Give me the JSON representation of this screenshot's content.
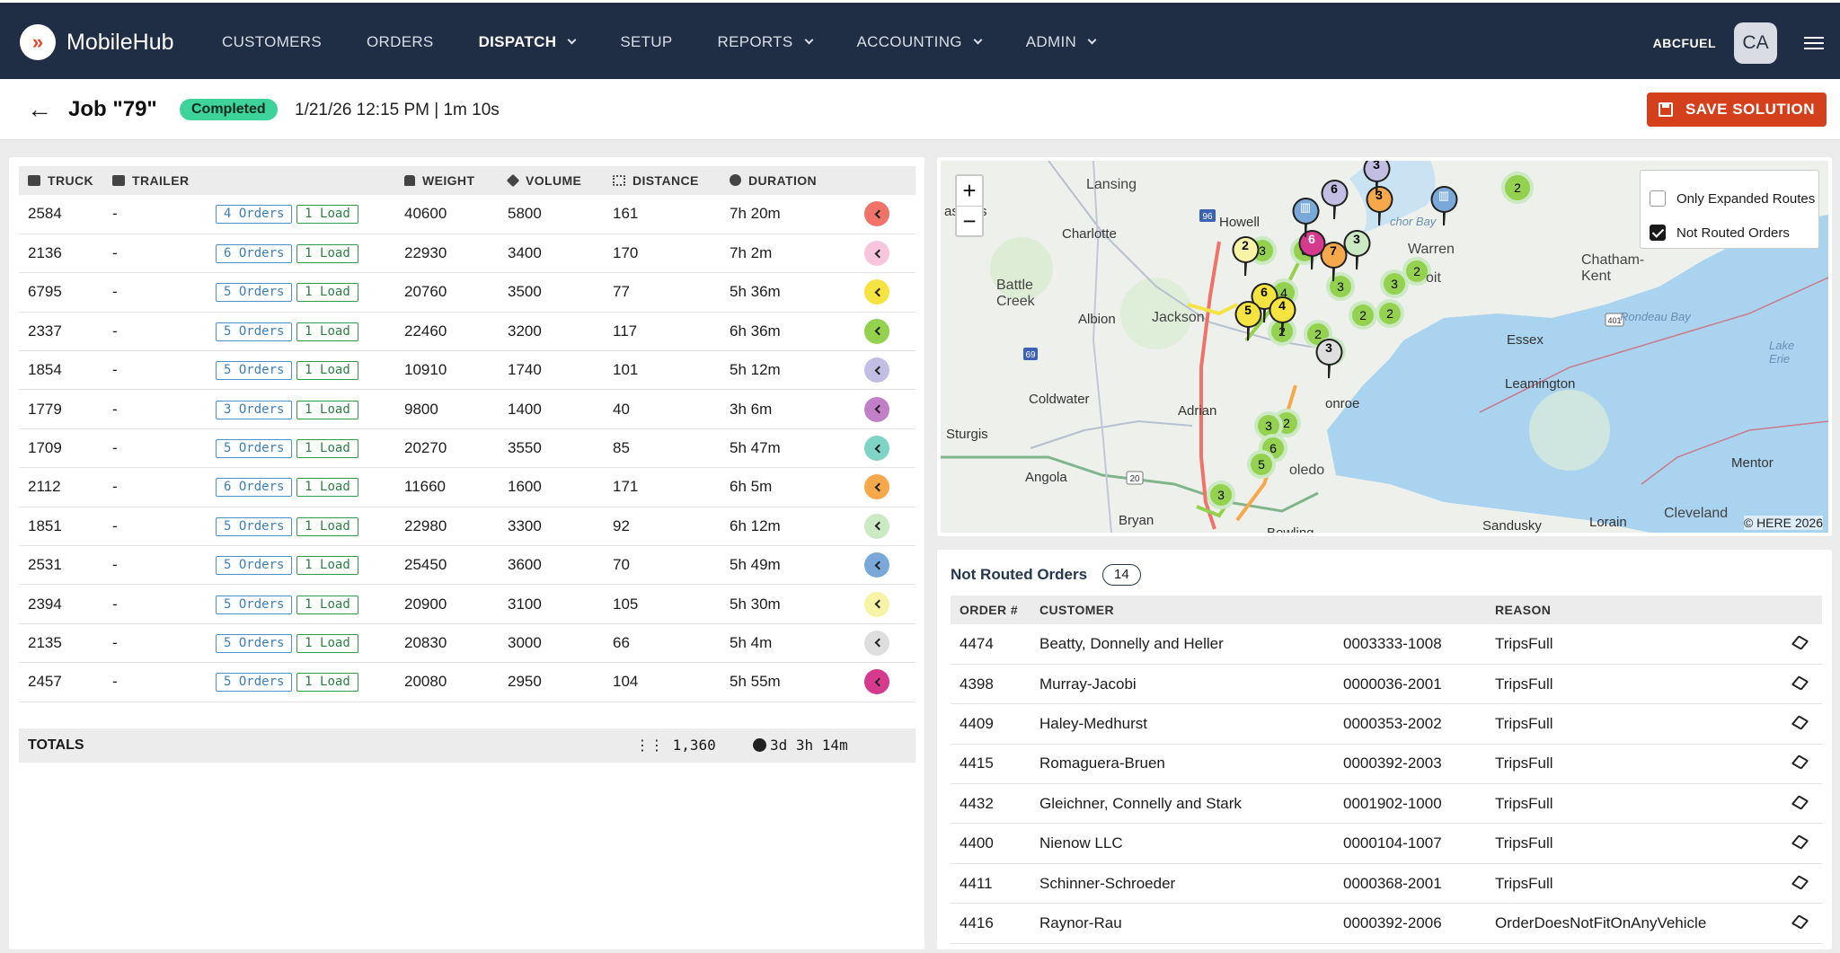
{
  "app": {
    "name": "MobileHub"
  },
  "nav": [
    {
      "label": "CUSTOMERS",
      "dropdown": false,
      "active": false
    },
    {
      "label": "ORDERS",
      "dropdown": false,
      "active": false
    },
    {
      "label": "DISPATCH",
      "dropdown": true,
      "active": true
    },
    {
      "label": "SETUP",
      "dropdown": false,
      "active": false
    },
    {
      "label": "REPORTS",
      "dropdown": true,
      "active": false
    },
    {
      "label": "ACCOUNTING",
      "dropdown": true,
      "active": false
    },
    {
      "label": "ADMIN",
      "dropdown": true,
      "active": false
    }
  ],
  "account": {
    "name": "ABCFUEL",
    "initials": "CA"
  },
  "job": {
    "title": "Job \"79\"",
    "status": "Completed",
    "meta": "1/21/26 12:15 PM | 1m 10s",
    "save_label": "SAVE SOLUTION",
    "status_color": "#3dd39a"
  },
  "trucks": {
    "headers": {
      "truck": "TRUCK",
      "trailer": "TRAILER",
      "weight": "WEIGHT",
      "volume": "VOLUME",
      "distance": "DISTANCE",
      "duration": "DURATION"
    },
    "rows": [
      {
        "truck": "2584",
        "trailer": "-",
        "orders": "4 Orders",
        "loads": "1 Load",
        "weight": "40600",
        "volume": "5800",
        "distance": "161",
        "duration": "7h 20m",
        "color": "#f0736a"
      },
      {
        "truck": "2136",
        "trailer": "-",
        "orders": "6 Orders",
        "loads": "1 Load",
        "weight": "22930",
        "volume": "3400",
        "distance": "170",
        "duration": "7h 2m",
        "color": "#f7c6dc"
      },
      {
        "truck": "6795",
        "trailer": "-",
        "orders": "5 Orders",
        "loads": "1 Load",
        "weight": "20760",
        "volume": "3500",
        "distance": "77",
        "duration": "5h 36m",
        "color": "#f5e342"
      },
      {
        "truck": "2337",
        "trailer": "-",
        "orders": "5 Orders",
        "loads": "1 Load",
        "weight": "22460",
        "volume": "3200",
        "distance": "117",
        "duration": "6h 36m",
        "color": "#93d14e"
      },
      {
        "truck": "1854",
        "trailer": "-",
        "orders": "5 Orders",
        "loads": "1 Load",
        "weight": "10910",
        "volume": "1740",
        "distance": "101",
        "duration": "5h 12m",
        "color": "#c2bde3"
      },
      {
        "truck": "1779",
        "trailer": "-",
        "orders": "3 Orders",
        "loads": "1 Load",
        "weight": "9800",
        "volume": "1400",
        "distance": "40",
        "duration": "3h 6m",
        "color": "#c07fc7"
      },
      {
        "truck": "1709",
        "trailer": "-",
        "orders": "5 Orders",
        "loads": "1 Load",
        "weight": "20270",
        "volume": "3550",
        "distance": "85",
        "duration": "5h 47m",
        "color": "#7fd4c6"
      },
      {
        "truck": "2112",
        "trailer": "-",
        "orders": "6 Orders",
        "loads": "1 Load",
        "weight": "11660",
        "volume": "1600",
        "distance": "171",
        "duration": "6h 5m",
        "color": "#f7a84a"
      },
      {
        "truck": "1851",
        "trailer": "-",
        "orders": "5 Orders",
        "loads": "1 Load",
        "weight": "22980",
        "volume": "3300",
        "distance": "92",
        "duration": "6h 12m",
        "color": "#cbeac4"
      },
      {
        "truck": "2531",
        "trailer": "-",
        "orders": "5 Orders",
        "loads": "1 Load",
        "weight": "25450",
        "volume": "3600",
        "distance": "70",
        "duration": "5h 49m",
        "color": "#7aa9d9"
      },
      {
        "truck": "2394",
        "trailer": "-",
        "orders": "5 Orders",
        "loads": "1 Load",
        "weight": "20900",
        "volume": "3100",
        "distance": "105",
        "duration": "5h 30m",
        "color": "#f8f4a7"
      },
      {
        "truck": "2135",
        "trailer": "-",
        "orders": "5 Orders",
        "loads": "1 Load",
        "weight": "20830",
        "volume": "3000",
        "distance": "66",
        "duration": "5h 4m",
        "color": "#dedede"
      },
      {
        "truck": "2457",
        "trailer": "-",
        "orders": "5 Orders",
        "loads": "1 Load",
        "weight": "20080",
        "volume": "2950",
        "distance": "104",
        "duration": "5h 55m",
        "color": "#d63a8f"
      }
    ],
    "totals": {
      "label": "TOTALS",
      "distance": "1,360",
      "duration": "3d 3h 14m"
    }
  },
  "map": {
    "legend": [
      {
        "label": "Only Expanded Routes",
        "checked": false
      },
      {
        "label": "Not Routed Orders",
        "checked": true
      }
    ],
    "copyright": "© HERE 2026",
    "labels": [
      "Lansing",
      "astings",
      "Charlotte",
      "Howell",
      "Battle Creek",
      "Albion",
      "Jackson",
      "Warren",
      "oit",
      "Chatham-Kent",
      "Rondeau Bay",
      "Essex",
      "Lake Erie",
      "Leamington",
      "Coldwater",
      "Adrian",
      "onroe",
      "Sturgis",
      "Angola",
      "oledo",
      "Bryan",
      "Bowling",
      "Sandusky",
      "Lorain",
      "Cleveland",
      "Mentor",
      "chor Bay"
    ],
    "road_shields": [
      "96",
      "69",
      "20",
      "401"
    ]
  },
  "not_routed": {
    "title": "Not Routed Orders",
    "count": "14",
    "headers": {
      "order": "ORDER #",
      "customer": "CUSTOMER",
      "reason": "REASON"
    },
    "rows": [
      {
        "order": "4474",
        "customer": "Beatty, Donnelly and Heller",
        "account": "0003333-1008",
        "reason": "TripsFull"
      },
      {
        "order": "4398",
        "customer": "Murray-Jacobi",
        "account": "0000036-2001",
        "reason": "TripsFull"
      },
      {
        "order": "4409",
        "customer": "Haley-Medhurst",
        "account": "0000353-2002",
        "reason": "TripsFull"
      },
      {
        "order": "4415",
        "customer": "Romaguera-Bruen",
        "account": "0000392-2003",
        "reason": "TripsFull"
      },
      {
        "order": "4432",
        "customer": "Gleichner, Connelly and Stark",
        "account": "0001902-1000",
        "reason": "TripsFull"
      },
      {
        "order": "4400",
        "customer": "Nienow LLC",
        "account": "0000104-1007",
        "reason": "TripsFull"
      },
      {
        "order": "4411",
        "customer": "Schinner-Schroeder",
        "account": "0000368-2001",
        "reason": "TripsFull"
      },
      {
        "order": "4416",
        "customer": "Raynor-Rau",
        "account": "0000392-2006",
        "reason": "OrderDoesNotFitOnAnyVehicle"
      }
    ]
  },
  "colors": {
    "topbar": "#1f2e45",
    "accent": "#d4401c",
    "tag_orders": "#4a90c9",
    "tag_load": "#2f9a4d"
  }
}
